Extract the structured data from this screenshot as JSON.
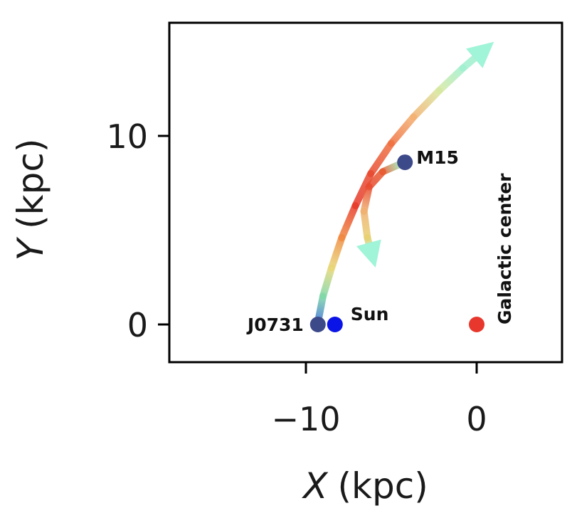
{
  "chart_data": {
    "type": "scatter",
    "xlabel": {
      "var": "X",
      "unit": "(kpc)"
    },
    "ylabel": {
      "var": "Y",
      "unit": "(kpc)"
    },
    "xlim": [
      -18,
      5
    ],
    "ylim": [
      -2,
      16
    ],
    "xticks": [
      {
        "value": -10,
        "label": "−10"
      },
      {
        "value": 0,
        "label": "0"
      }
    ],
    "yticks": [
      {
        "value": 0,
        "label": "0"
      },
      {
        "value": 10,
        "label": "10"
      }
    ],
    "grid": false,
    "points": [
      {
        "name": "J0731",
        "x": -9.3,
        "y": 0.0,
        "color": "#3d4a8a"
      },
      {
        "name": "Sun",
        "x": -8.3,
        "y": 0.0,
        "color": "#0a14e6"
      },
      {
        "name": "M15",
        "x": -4.2,
        "y": 8.6,
        "color": "#3d4a8a"
      },
      {
        "name": "Galactic center",
        "x": 0.0,
        "y": 0.0,
        "color": "#e8372c"
      }
    ],
    "orbits": [
      {
        "from": "J0731",
        "path": [
          [
            -9.3,
            0.1
          ],
          [
            -9.0,
            1.5
          ],
          [
            -8.5,
            3.0
          ],
          [
            -7.9,
            4.6
          ],
          [
            -7.1,
            6.3
          ],
          [
            -6.2,
            8.0
          ],
          [
            -5.0,
            9.6
          ],
          [
            -3.7,
            11.0
          ],
          [
            -2.2,
            12.4
          ],
          [
            -0.8,
            13.6
          ],
          [
            0.5,
            14.6
          ]
        ],
        "colors": [
          "#3b6fd8",
          "#7fd8a8",
          "#e8d878",
          "#f08a40",
          "#e83a2a",
          "#e84a30",
          "#f07040",
          "#f4b070",
          "#d8e8a0",
          "#a0f0d0"
        ],
        "head_color": "#a0f4d8"
      },
      {
        "from": "M15",
        "path": [
          [
            -4.5,
            8.5
          ],
          [
            -5.5,
            8.1
          ],
          [
            -6.3,
            7.3
          ],
          [
            -6.6,
            6.0
          ],
          [
            -6.4,
            4.6
          ],
          [
            -6.1,
            3.6
          ]
        ],
        "colors": [
          "#a0e8b0",
          "#e85a30",
          "#e84a30",
          "#f0b070",
          "#e8d070",
          "#a0f0d0"
        ],
        "head_color": "#a0f4d8"
      }
    ]
  }
}
